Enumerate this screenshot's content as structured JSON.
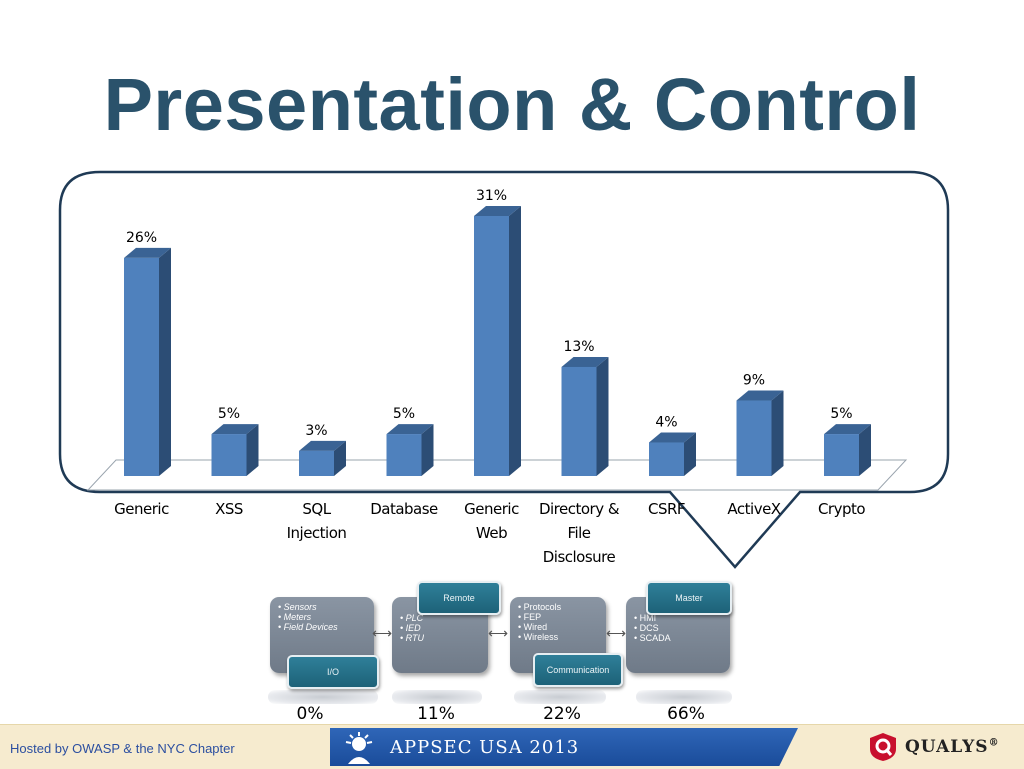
{
  "slide": {
    "title": "Presentation & Control"
  },
  "chart_data": {
    "type": "bar",
    "categories": [
      [
        "Generic"
      ],
      [
        "XSS"
      ],
      [
        "SQL",
        "Injection"
      ],
      [
        "Database"
      ],
      [
        "Generic",
        "Web"
      ],
      [
        "Directory &",
        "File",
        "Disclosure"
      ],
      [
        "CSRF"
      ],
      [
        "ActiveX"
      ],
      [
        "Crypto"
      ]
    ],
    "values": [
      26,
      5,
      3,
      5,
      31,
      13,
      4,
      9,
      5
    ],
    "value_labels": [
      "26%",
      "5%",
      "3%",
      "5%",
      "31%",
      "13%",
      "4%",
      "9%",
      "5%"
    ],
    "ylim": [
      0,
      31
    ],
    "grid": false,
    "bar_color": "#4f81bd",
    "bar_side_color": "#2c4d75",
    "bar_top_color": "#3a6394"
  },
  "diagram": {
    "stages": [
      {
        "items": [
          "Sensors",
          "Meters",
          "Field Devices"
        ],
        "tag": "I/O",
        "percent": "0%"
      },
      {
        "items": [
          "PLC",
          "IED",
          "RTU"
        ],
        "tag": "Remote",
        "percent": "11%"
      },
      {
        "items": [
          "Protocols",
          "FEP",
          "Wired",
          "Wireless"
        ],
        "tag": "Communication",
        "percent": "22%"
      },
      {
        "items": [
          "HMI",
          "DCS",
          "SCADA"
        ],
        "tag": "Master",
        "percent": "66%"
      }
    ]
  },
  "footer": {
    "hosted_by": "Hosted by OWASP & the NYC Chapter",
    "event": "APPSEC USA 2013",
    "sponsor": "QUALYS",
    "sponsor_mark": "®",
    "colors": {
      "footer_bg": "#f6ebcf",
      "banner": "#1a4c9a",
      "qualys_red": "#c8102e"
    }
  }
}
